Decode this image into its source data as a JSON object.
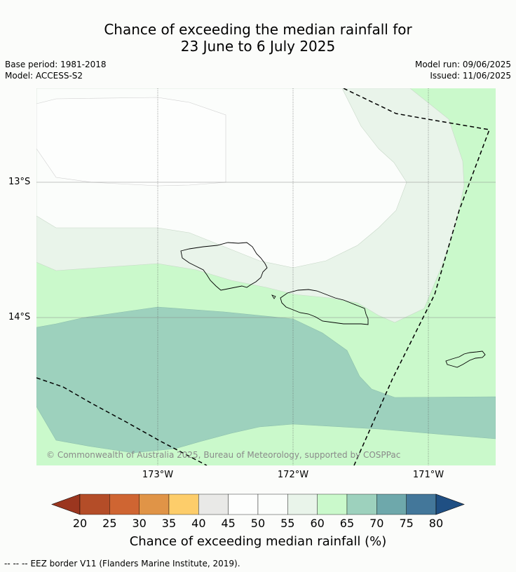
{
  "header": {
    "title_line1": "Chance of exceeding the median rainfall for",
    "title_line2": "23 June to 6 July 2025",
    "base_period": "Base period: 1981-2018",
    "model": "Model: ACCESS-S2",
    "model_run": "Model run: 09/06/2025",
    "issued": "Issued: 11/06/2025"
  },
  "map": {
    "lat_labels": [
      "13°S",
      "14°S"
    ],
    "lon_labels": [
      "173°W",
      "172°W",
      "171°W"
    ],
    "copyright": "© Commonwealth of Australia 2025, Bureau of Meteorology, supported by COSPPac",
    "region_categories": [
      "45-55",
      "55-60",
      "60-65",
      "65-70"
    ]
  },
  "colorbar": {
    "ticks": [
      "20",
      "25",
      "30",
      "35",
      "40",
      "45",
      "50",
      "55",
      "60",
      "65",
      "70",
      "75",
      "80"
    ],
    "colors": [
      "#9b361f",
      "#b44d28",
      "#cf6532",
      "#e09447",
      "#fdcd6a",
      "#e9e9e7",
      "#fdfefd",
      "#fbfdfb",
      "#e9f4ea",
      "#caf9cb",
      "#9dd1bd",
      "#6ea8ab",
      "#43779a",
      "#1f4f83"
    ],
    "title": "Chance of exceeding median rainfall (%)"
  },
  "legend": {
    "eez_line": "EEZ border V11 (Flanders Marine Institute, 2019)."
  }
}
